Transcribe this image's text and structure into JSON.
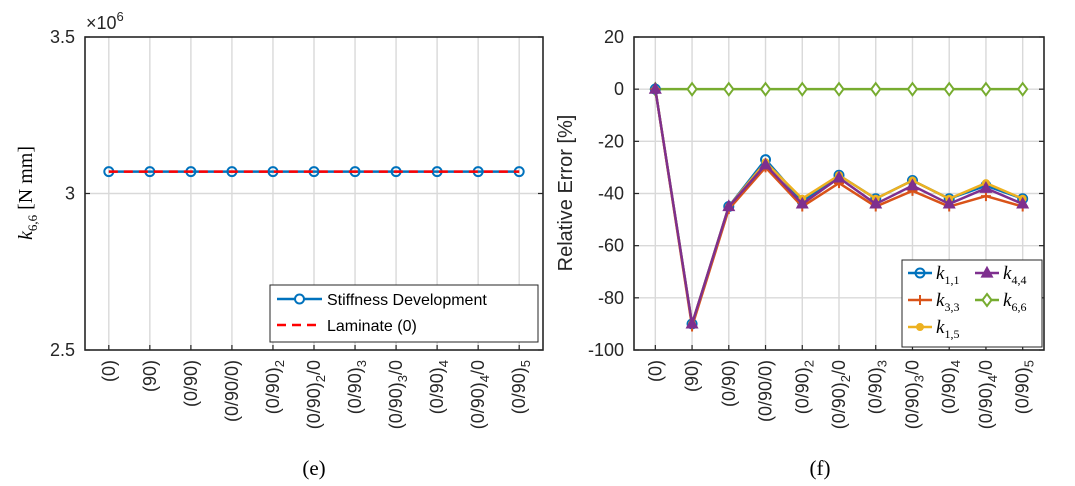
{
  "categories": [
    "(0)",
    "(90)",
    "(0/90)",
    "(0/90/0)",
    "(0/90)_2",
    "(0/90)_2/0",
    "(0/90)_3",
    "(0/90)_3/0",
    "(0/90)_4",
    "(0/90)_4/0",
    "(0/90)_5"
  ],
  "chart_data": [
    {
      "type": "line",
      "panel_label": "(e)",
      "ylabel": "k6,6 [N mm]",
      "ylabel_main": "k",
      "ylabel_sub": "6,6",
      "ylabel_unit": " [N mm]",
      "ylim": [
        2.5,
        3.5
      ],
      "yticks": [
        2.5,
        3,
        3.5
      ],
      "ytick_labels": [
        "2.5",
        "3",
        "3.5"
      ],
      "exponent_label": "×10",
      "exponent_power": "6",
      "grid": true,
      "legend_position": "bottom-right",
      "categories": [
        "(0)",
        "(90)",
        "(0/90)",
        "(0/90/0)",
        "(0/90)_2",
        "(0/90)_2/0",
        "(0/90)_3",
        "(0/90)_3/0",
        "(0/90)_4",
        "(0/90)_4/0",
        "(0/90)_5"
      ],
      "series": [
        {
          "name": "Stiffness Development",
          "color": "#0072BD",
          "marker": "circle",
          "dash": "solid",
          "values": [
            3.07,
            3.07,
            3.07,
            3.07,
            3.07,
            3.07,
            3.07,
            3.07,
            3.07,
            3.07,
            3.07
          ]
        },
        {
          "name": "Laminate (0)",
          "color": "#FF0000",
          "marker": "none",
          "dash": "dashed",
          "values": [
            3.07,
            3.07,
            3.07,
            3.07,
            3.07,
            3.07,
            3.07,
            3.07,
            3.07,
            3.07,
            3.07
          ]
        }
      ]
    },
    {
      "type": "line",
      "panel_label": "(f)",
      "ylabel": "Relative Error [%]",
      "ylim": [
        -100,
        20
      ],
      "yticks": [
        -100,
        -80,
        -60,
        -40,
        -20,
        0,
        20
      ],
      "ytick_labels": [
        "-100",
        "-80",
        "-60",
        "-40",
        "-20",
        "0",
        "20"
      ],
      "grid": true,
      "legend_position": "bottom-right",
      "categories": [
        "(0)",
        "(90)",
        "(0/90)",
        "(0/90/0)",
        "(0/90)_2",
        "(0/90)_2/0",
        "(0/90)_3",
        "(0/90)_3/0",
        "(0/90)_4",
        "(0/90)_4/0",
        "(0/90)_5"
      ],
      "series": [
        {
          "name": "k1,1",
          "name_main": "k",
          "name_sub": "1,1",
          "color": "#0072BD",
          "marker": "circle",
          "values": [
            0,
            -90,
            -45,
            -27,
            -43,
            -33,
            -42,
            -35,
            -42,
            -37,
            -42
          ]
        },
        {
          "name": "k3,3",
          "name_main": "k",
          "name_sub": "3,3",
          "color": "#D95319",
          "marker": "plus",
          "values": [
            0,
            -91,
            -46,
            -30,
            -45,
            -36,
            -45,
            -39,
            -45,
            -41,
            -45
          ]
        },
        {
          "name": "k1,5",
          "name_main": "k",
          "name_sub": "1,5",
          "color": "#EDB120",
          "marker": "dot",
          "values": [
            0,
            -90,
            -45,
            -28,
            -42,
            -33,
            -42,
            -35,
            -42,
            -36,
            -42
          ]
        },
        {
          "name": "k4,4",
          "name_main": "k",
          "name_sub": "4,4",
          "color": "#7E2F8E",
          "marker": "triangle",
          "values": [
            0,
            -90,
            -45,
            -29,
            -44,
            -34,
            -44,
            -37,
            -44,
            -38,
            -44
          ]
        },
        {
          "name": "k6,6",
          "name_main": "k",
          "name_sub": "6,6",
          "color": "#77AC30",
          "marker": "diamond",
          "values": [
            0,
            0,
            0,
            0,
            0,
            0,
            0,
            0,
            0,
            0,
            0
          ]
        }
      ]
    }
  ]
}
